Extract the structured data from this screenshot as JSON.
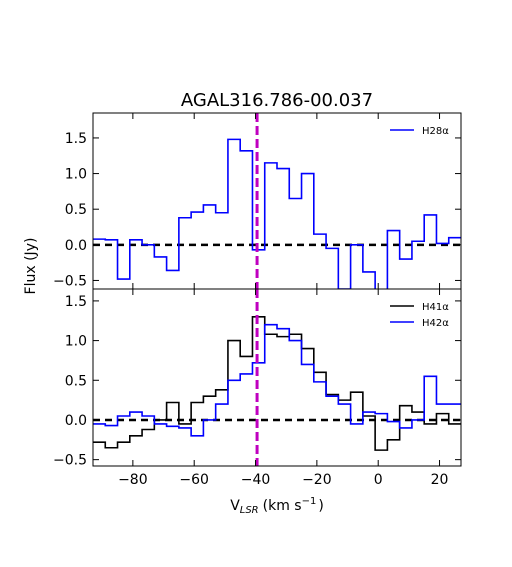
{
  "chart_data": {
    "type": "line",
    "title": "AGAL316.786-00.037",
    "xlabel": "V",
    "xlabel_sub": "LSR",
    "xlabel_unit": "(km s",
    "xlabel_exp": "−1",
    "xlabel_close": ")",
    "ylabel": "Flux (Jy)",
    "xlim": [
      -93,
      27
    ],
    "x_ticks": [
      -80,
      -60,
      -40,
      -20,
      0,
      20
    ],
    "x_tick_labels": [
      "−80",
      "−60",
      "−40",
      "−20",
      "0",
      "20"
    ],
    "vline_x": -39.5,
    "vline_color": "#bf00bf",
    "panels": [
      {
        "ylim": [
          -0.62,
          1.85
        ],
        "y_ticks": [
          -0.5,
          0.0,
          0.5,
          1.0,
          1.5
        ],
        "y_tick_labels": [
          "−0.5",
          "0.0",
          "0.5",
          "1.0",
          "1.5"
        ],
        "series": [
          {
            "name": "H28α",
            "color": "#0000ff",
            "edges": [
              -93,
              -89,
              -85,
              -81,
              -77,
              -73,
              -69,
              -65,
              -61,
              -57,
              -53,
              -49,
              -45,
              -41,
              -37,
              -33,
              -29,
              -25,
              -21,
              -17,
              -13,
              -9,
              -5,
              -1,
              3,
              7,
              11,
              15,
              19,
              23,
              27
            ],
            "values": [
              0.08,
              0.07,
              -0.48,
              0.07,
              0.0,
              -0.17,
              -0.36,
              0.38,
              0.46,
              0.56,
              0.45,
              1.48,
              1.32,
              -0.07,
              1.15,
              1.07,
              0.65,
              1.0,
              0.15,
              -0.05,
              -0.62,
              0.0,
              -0.38,
              -0.65,
              0.2,
              -0.2,
              0.05,
              0.42,
              0.02,
              0.1
            ]
          }
        ]
      },
      {
        "ylim": [
          -0.58,
          1.65
        ],
        "y_ticks": [
          -0.5,
          0.0,
          0.5,
          1.0,
          1.5
        ],
        "y_tick_labels": [
          "−0.5",
          "0.0",
          "0.5",
          "1.0",
          "1.5"
        ],
        "series": [
          {
            "name": "H41α",
            "color": "#000000",
            "edges": [
              -93,
              -89,
              -85,
              -81,
              -77,
              -73,
              -69,
              -65,
              -61,
              -57,
              -53,
              -49,
              -45,
              -41,
              -37,
              -33,
              -29,
              -25,
              -21,
              -17,
              -13,
              -9,
              -5,
              -1,
              3,
              7,
              11,
              15,
              19,
              23,
              27
            ],
            "values": [
              -0.28,
              -0.35,
              -0.28,
              -0.2,
              -0.12,
              0.0,
              0.22,
              -0.05,
              0.22,
              0.3,
              0.38,
              1.0,
              0.8,
              1.3,
              1.08,
              1.05,
              1.08,
              0.9,
              0.6,
              0.32,
              0.25,
              0.35,
              0.05,
              -0.38,
              -0.25,
              0.18,
              0.1,
              -0.05,
              0.08,
              -0.05
            ]
          },
          {
            "name": "H42α",
            "color": "#0000ff",
            "edges": [
              -93,
              -89,
              -85,
              -81,
              -77,
              -73,
              -69,
              -65,
              -61,
              -57,
              -53,
              -49,
              -45,
              -41,
              -37,
              -33,
              -29,
              -25,
              -21,
              -17,
              -13,
              -9,
              -5,
              -1,
              3,
              7,
              11,
              15,
              19,
              23,
              27
            ],
            "values": [
              -0.05,
              -0.07,
              0.05,
              0.1,
              0.05,
              -0.05,
              -0.08,
              -0.1,
              -0.2,
              0.0,
              0.2,
              0.5,
              0.58,
              0.72,
              1.2,
              1.15,
              1.0,
              0.7,
              0.48,
              0.3,
              0.2,
              -0.05,
              0.1,
              0.08,
              -0.02,
              -0.1,
              0.0,
              0.55,
              0.2,
              0.2
            ]
          }
        ]
      }
    ],
    "legend_placement": "top-right"
  }
}
